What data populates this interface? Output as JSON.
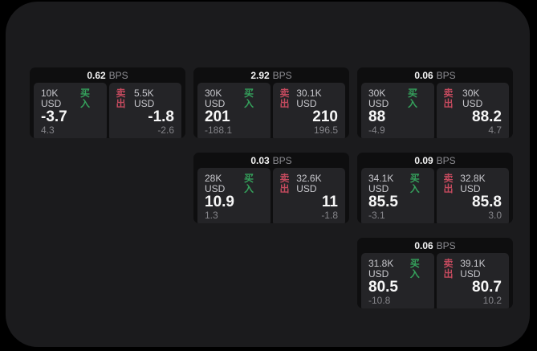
{
  "labels": {
    "buy": "买入",
    "sell": "卖出",
    "bps": "BPS"
  },
  "theme": {
    "page_bg": "#000000",
    "panel_bg": "#1b1b1d",
    "card_bg": "#0e0e0f",
    "tile_bg": "#242427",
    "buy_color": "#35a25c",
    "sell_color": "#c44a5e",
    "text_primary": "#f7f7f7",
    "text_secondary": "#c8c8cd",
    "text_muted": "#85858a"
  },
  "cards": [
    {
      "bps_value": "0.62",
      "buy": {
        "amount": "10K USD",
        "price": "-3.7",
        "delta": "4.3"
      },
      "sell": {
        "amount": "5.5K USD",
        "price": "-1.8",
        "delta": "-2.6"
      }
    },
    {
      "bps_value": "2.92",
      "buy": {
        "amount": "30K USD",
        "price": "201",
        "delta": "-188.1"
      },
      "sell": {
        "amount": "30.1K USD",
        "price": "210",
        "delta": "196.5"
      }
    },
    {
      "bps_value": "0.06",
      "buy": {
        "amount": "30K USD",
        "price": "88",
        "delta": "-4.9"
      },
      "sell": {
        "amount": "30K USD",
        "price": "88.2",
        "delta": "4.7"
      }
    },
    {
      "bps_value": "0.03",
      "buy": {
        "amount": "28K USD",
        "price": "10.9",
        "delta": "1.3"
      },
      "sell": {
        "amount": "32.6K USD",
        "price": "11",
        "delta": "-1.8"
      }
    },
    {
      "bps_value": "0.09",
      "buy": {
        "amount": "34.1K USD",
        "price": "85.5",
        "delta": "-3.1"
      },
      "sell": {
        "amount": "32.8K USD",
        "price": "85.8",
        "delta": "3.0"
      }
    },
    {
      "bps_value": "0.06",
      "buy": {
        "amount": "31.8K USD",
        "price": "80.5",
        "delta": "-10.8"
      },
      "sell": {
        "amount": "39.1K USD",
        "price": "80.7",
        "delta": "10.2"
      }
    }
  ]
}
